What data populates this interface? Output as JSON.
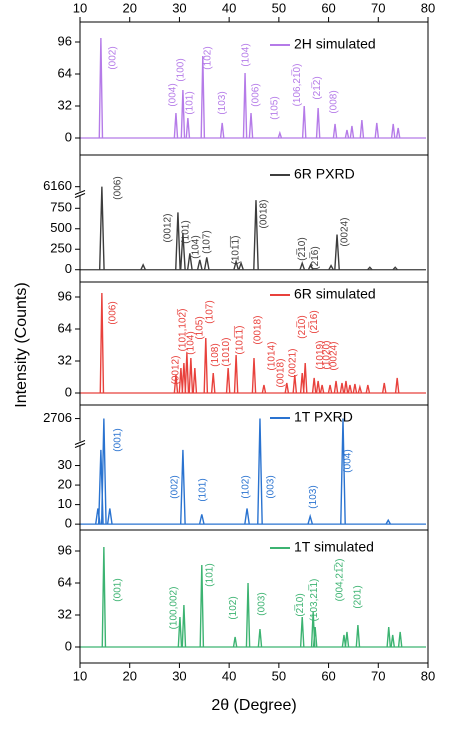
{
  "axes": {
    "xlim": [
      10,
      80
    ],
    "xticks": [
      10,
      20,
      30,
      40,
      50,
      60,
      70,
      80
    ],
    "xlabel": "2θ (Degree)",
    "ylabel": "Intensity (Counts)"
  },
  "chart_data": [
    {
      "type": "peak",
      "ylim": [
        -17,
        116
      ],
      "yticks": [
        0,
        32,
        64,
        96
      ],
      "series": [
        {
          "name": "2H simulated",
          "color": "#b57be8",
          "x": [
            14.2,
            29.3,
            30.7,
            31.7,
            34.7,
            38.6,
            43.2,
            44.4,
            50.2,
            55.1,
            57.9,
            61.3,
            63.7,
            64.7,
            66.7,
            69.7,
            73.0,
            74.0
          ],
          "values": [
            100,
            25,
            48,
            20,
            82,
            15,
            65,
            25,
            5,
            32,
            30,
            14,
            8,
            12,
            18,
            15,
            14,
            10
          ]
        }
      ],
      "annotations": [
        {
          "text": "(002)",
          "x": 16.6
        },
        {
          "text": "(004)",
          "x": 28.7
        },
        {
          "text": "(100)",
          "x": 30.3
        },
        {
          "text": "(101)",
          "x": 32.1
        },
        {
          "text": "(102)",
          "x": 35.7
        },
        {
          "text": "(103)",
          "x": 38.6
        },
        {
          "text": "(104)",
          "x": 43.4
        },
        {
          "text": "(006)",
          "x": 45.4
        },
        {
          "text": "(105)",
          "x": 49.2
        },
        {
          "text": "(106,21̅0)",
          "x": 53.7
        },
        {
          "text": "(21̅2)",
          "x": 57.7
        },
        {
          "text": "(008)",
          "x": 61.1
        }
      ]
    },
    {
      "type": "peak",
      "ylim": [
        -150,
        6600
      ],
      "ybreak": [
        900,
        6100
      ],
      "yticks": [
        0,
        250,
        500,
        750,
        6160
      ],
      "series": [
        {
          "name": "6R PXRD",
          "color": "#3d3d3d",
          "x": [
            14.4,
            22.7,
            29.7,
            30.7,
            32.1,
            34.1,
            35.5,
            41.4,
            42.4,
            45.4,
            54.7,
            56.4,
            60.5,
            61.7,
            68.3,
            73.4
          ],
          "values": [
            6160,
            60,
            700,
            450,
            200,
            120,
            150,
            100,
            80,
            850,
            80,
            60,
            50,
            430,
            30,
            30
          ]
        }
      ],
      "annotations": [
        {
          "text": "(006)",
          "x": 17.6
        },
        {
          "text": "(0012)",
          "x": 27.7
        },
        {
          "text": "(101)",
          "x": 31.3
        },
        {
          "text": "(104)",
          "x": 33.3
        },
        {
          "text": "(107)",
          "x": 35.5
        },
        {
          "text": "(101̅1̅)",
          "x": 41.4
        },
        {
          "text": "(0018)",
          "x": 47.0
        },
        {
          "text": "(2̅10)",
          "x": 54.7
        },
        {
          "text": "(21̅6)",
          "x": 57.3
        },
        {
          "text": "(0024)",
          "x": 63.3
        }
      ]
    },
    {
      "type": "peak",
      "ylim": [
        -12,
        111
      ],
      "yticks": [
        0,
        32,
        64,
        96
      ],
      "series": [
        {
          "name": "6R simulated",
          "color": "#e8413c",
          "x": [
            14.4,
            29.3,
            30.3,
            30.9,
            31.5,
            32.3,
            33.1,
            35.3,
            36.8,
            39.8,
            41.4,
            45.0,
            47.0,
            51.6,
            53.2,
            54.7,
            55.3,
            57.1,
            57.9,
            58.7,
            60.3,
            61.5,
            62.7,
            63.5,
            64.3,
            65.3,
            66.3,
            67.9,
            71.2,
            73.8
          ],
          "values": [
            100,
            18,
            25,
            30,
            40,
            35,
            25,
            55,
            20,
            25,
            38,
            35,
            8,
            10,
            18,
            20,
            30,
            15,
            12,
            8,
            8,
            12,
            10,
            12,
            8,
            9,
            6,
            8,
            10,
            15
          ]
        }
      ],
      "annotations": [
        {
          "text": "(006)",
          "x": 16.6
        },
        {
          "text": "(0012)",
          "x": 29.3
        },
        {
          "text": "(101,102̅)",
          "x": 30.7
        },
        {
          "text": "(104)",
          "x": 32.3
        },
        {
          "text": "(105)",
          "x": 34.1
        },
        {
          "text": "(107)",
          "x": 36.1
        },
        {
          "text": "(108)",
          "x": 37.2
        },
        {
          "text": "(1010)",
          "x": 39.4
        },
        {
          "text": "(101̅1̅)",
          "x": 42.2
        },
        {
          "text": "(0018)",
          "x": 45.8
        },
        {
          "text": "(1014)",
          "x": 48.6
        },
        {
          "text": "(0018)",
          "x": 50.4
        },
        {
          "text": "(0021)",
          "x": 52.8
        },
        {
          "text": "(21̅0)",
          "x": 54.7
        },
        {
          "text": "(2̅16)",
          "x": 57.1
        },
        {
          "text": "(1019)",
          "x": 58.3
        },
        {
          "text": "(1020)",
          "x": 59.7
        },
        {
          "text": "(0024)",
          "x": 61.1
        }
      ]
    },
    {
      "type": "peak",
      "ylim": [
        -3,
        2770
      ],
      "ybreak": [
        40,
        2600
      ],
      "yticks": [
        0,
        10,
        20,
        30,
        2706
      ],
      "series": [
        {
          "name": "1T PXRD",
          "color": "#2a73d0",
          "x": [
            13.6,
            14.2,
            14.8,
            16.0,
            30.7,
            34.5,
            43.6,
            46.2,
            56.3,
            62.9,
            72.0
          ],
          "values": [
            8,
            38,
            2706,
            8,
            38,
            5,
            8,
            2706,
            4,
            2706,
            2
          ]
        }
      ],
      "annotations": [
        {
          "text": "(001)",
          "x": 17.6
        },
        {
          "text": "(002)",
          "x": 29.1
        },
        {
          "text": "(101)",
          "x": 34.7
        },
        {
          "text": "(102)",
          "x": 43.4
        },
        {
          "text": "(003)",
          "x": 48.4
        },
        {
          "text": "(103)",
          "x": 56.9
        },
        {
          "text": "(004)",
          "x": 63.9
        }
      ]
    },
    {
      "type": "peak",
      "ylim": [
        -16,
        117
      ],
      "yticks": [
        0,
        32,
        64,
        96
      ],
      "series": [
        {
          "name": "1T simulated",
          "color": "#3cb371",
          "x": [
            14.8,
            30.1,
            30.9,
            34.5,
            41.2,
            43.8,
            46.2,
            54.7,
            56.9,
            57.3,
            63.1,
            63.7,
            65.9,
            72.1,
            72.9,
            74.4
          ],
          "values": [
            100,
            30,
            42,
            82,
            10,
            64,
            18,
            30,
            35,
            20,
            12,
            15,
            22,
            20,
            12,
            15
          ]
        }
      ],
      "annotations": [
        {
          "text": "(001)",
          "x": 17.6
        },
        {
          "text": "(100,002)",
          "x": 28.9
        },
        {
          "text": "(101)",
          "x": 36.1
        },
        {
          "text": "(102)",
          "x": 40.8
        },
        {
          "text": "(003)",
          "x": 46.6
        },
        {
          "text": "(2̅10)",
          "x": 54.3
        },
        {
          "text": "(103,21̅1)",
          "x": 57.1
        },
        {
          "text": "(004,21̅2)",
          "x": 62.3
        },
        {
          "text": "(201)",
          "x": 65.9
        }
      ]
    }
  ]
}
